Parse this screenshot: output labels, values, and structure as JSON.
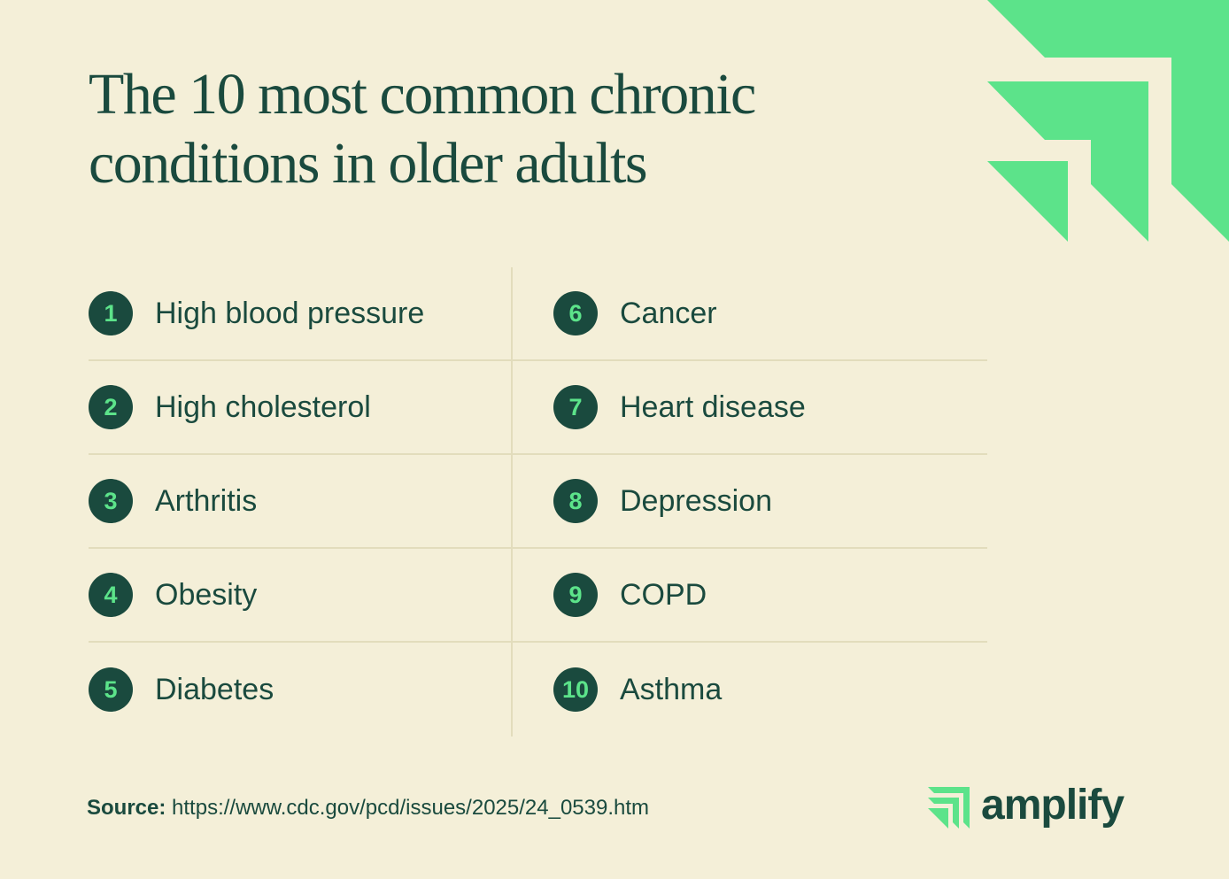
{
  "title": "The 10 most common chronic conditions in older adults",
  "items": [
    {
      "rank": 1,
      "label": "High blood pressure"
    },
    {
      "rank": 2,
      "label": "High cholesterol"
    },
    {
      "rank": 3,
      "label": "Arthritis"
    },
    {
      "rank": 4,
      "label": "Obesity"
    },
    {
      "rank": 5,
      "label": "Diabetes"
    },
    {
      "rank": 6,
      "label": "Cancer"
    },
    {
      "rank": 7,
      "label": "Heart disease"
    },
    {
      "rank": 8,
      "label": "Depression"
    },
    {
      "rank": 9,
      "label": "COPD"
    },
    {
      "rank": 10,
      "label": "Asthma"
    }
  ],
  "source": {
    "label": "Source:",
    "url": "https://www.cdc.gov/pcd/issues/2025/24_0539.htm"
  },
  "brand": "amplify"
}
